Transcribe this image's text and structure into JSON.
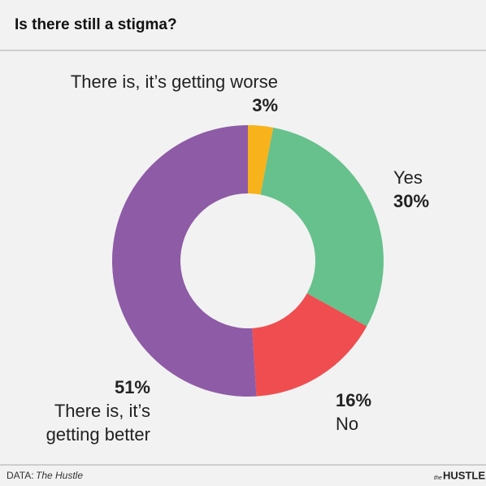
{
  "chart_data": {
    "type": "donut",
    "title": "Is there still a stigma?",
    "categories": [
      "There is, it’s getting worse",
      "Yes",
      "No",
      "There is, it’s getting better"
    ],
    "values": [
      3,
      30,
      16,
      51
    ],
    "value_labels": [
      "3%",
      "30%",
      "16%",
      "51%"
    ],
    "colors": [
      "#f7b21c",
      "#66c18c",
      "#ef4d50",
      "#8e5ba6"
    ],
    "source_prefix": "DATA:",
    "source": "The Hustle",
    "logo_small": "the",
    "logo": "HUSTLE"
  }
}
